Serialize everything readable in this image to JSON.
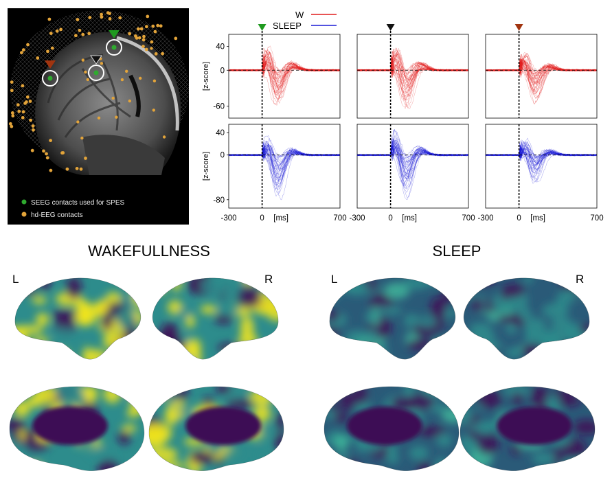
{
  "mri_panel": {
    "legend": [
      {
        "label": "SEEG contacts used for SPES",
        "color": "#2faa2f"
      },
      {
        "label": "hd-EEG contacts",
        "color": "#e3a43a"
      }
    ],
    "markers": [
      {
        "name": "green",
        "color": "#1f9a1f"
      },
      {
        "name": "black",
        "color": "#111111"
      },
      {
        "name": "brown",
        "color": "#a1340f"
      }
    ]
  },
  "legend": {
    "w_label": "W",
    "w_color": "#e11b1b",
    "sleep_label": "SLEEP",
    "sleep_color": "#1a1ad6"
  },
  "axes": {
    "ylabel": "[z-score]",
    "xunit": "[ms]",
    "x_ticks": [
      "-300",
      "0",
      "700"
    ],
    "w_y_ticks": [
      "40",
      "0",
      "-60"
    ],
    "sleep_y_ticks": [
      "40",
      "0",
      "-80"
    ]
  },
  "chart_data": {
    "type": "line",
    "xlim": [
      -300,
      700
    ],
    "stim_onset_ms": 0,
    "grid": false,
    "rows": [
      {
        "condition": "W",
        "ylim": [
          -80,
          60
        ],
        "y_ticks": [
          40,
          0,
          -60
        ]
      },
      {
        "condition": "SLEEP",
        "ylim": [
          -95,
          55
        ],
        "y_ticks": [
          40,
          0,
          -80
        ]
      }
    ],
    "columns": [
      {
        "marker": "green",
        "w_peak": 45,
        "w_trough": -70,
        "sleep_peak": 40,
        "sleep_trough": -90
      },
      {
        "marker": "black",
        "w_peak": 42,
        "w_trough": -75,
        "sleep_peak": 48,
        "sleep_trough": -88
      },
      {
        "marker": "brown",
        "w_peak": 35,
        "w_trough": -60,
        "sleep_peak": 30,
        "sleep_trough": -55
      }
    ]
  },
  "brains": {
    "title_wake": "WAKEFULLNESS",
    "title_sleep": "SLEEP",
    "left_label": "L",
    "right_label": "R",
    "palette_dark": "#3e0a55",
    "palette_mid": "#2d8c8c",
    "palette_bright": "#f1e51d"
  }
}
